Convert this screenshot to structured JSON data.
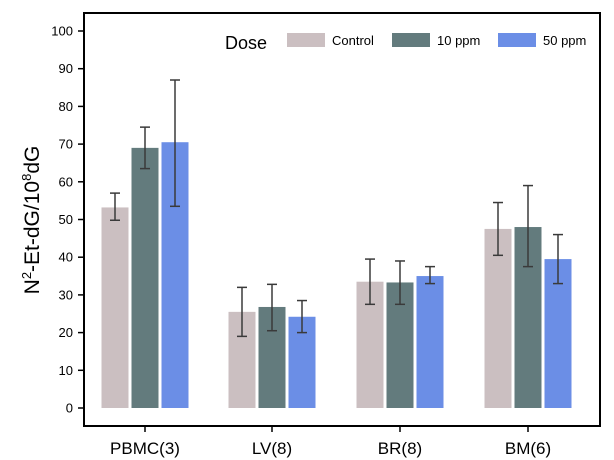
{
  "chart_data": {
    "type": "bar",
    "categories": [
      "PBMC(3)",
      "LV(8)",
      "BR(8)",
      "BM(6)"
    ],
    "series": [
      {
        "name": "Control",
        "color": "#cbbfc1",
        "values": [
          53.2,
          25.5,
          33.5,
          47.5
        ],
        "errors": [
          [
            49.8,
            57.0
          ],
          [
            19.0,
            32.0
          ],
          [
            27.5,
            39.5
          ],
          [
            40.5,
            54.5
          ]
        ]
      },
      {
        "name": "10 ppm",
        "color": "#637b7d",
        "values": [
          69.0,
          26.8,
          33.3,
          48.0
        ],
        "errors": [
          [
            63.5,
            74.5
          ],
          [
            20.5,
            32.8
          ],
          [
            27.5,
            39.0
          ],
          [
            37.5,
            59.0
          ]
        ]
      },
      {
        "name": "50 ppm",
        "color": "#6b8ee6",
        "values": [
          70.5,
          24.2,
          35.0,
          39.5
        ],
        "errors": [
          [
            53.5,
            87.0
          ],
          [
            20.0,
            28.5
          ],
          [
            33.0,
            37.5
          ],
          [
            33.0,
            46.0
          ]
        ]
      }
    ],
    "legend_title": "Dose",
    "legend_position": "top-right",
    "ylabel": {
      "pre": "N",
      "sup1": "2",
      "mid": "-Et-dG/10",
      "sup2": "8",
      "post": "dG"
    },
    "ylim": [
      0,
      100
    ],
    "yticks": [
      0,
      10,
      20,
      30,
      40,
      50,
      60,
      70,
      80,
      90,
      100
    ],
    "grid": false
  }
}
